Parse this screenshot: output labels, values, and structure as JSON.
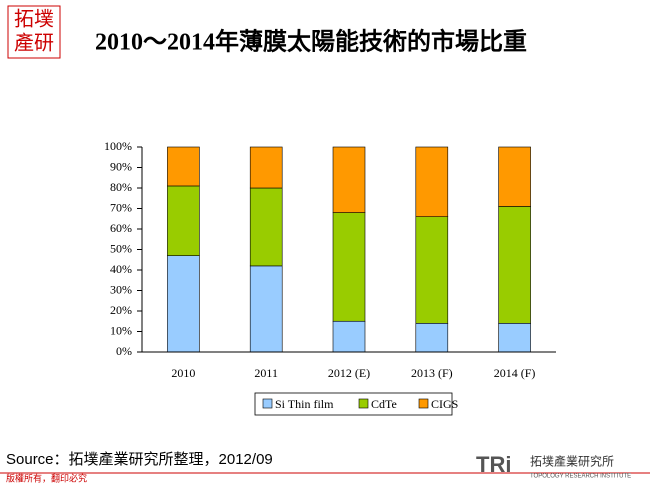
{
  "logo": [
    "拓墣",
    "產研"
  ],
  "chart_data": {
    "type": "stacked_bar",
    "title": "2010～2014年薄膜太陽能技術的市場比重",
    "categories": [
      "2010",
      "2011",
      "2012 (E)",
      "2013 (F)",
      "2014 (F)"
    ],
    "series": [
      {
        "name": "Si Thin film",
        "color": "#99ccff",
        "values": [
          47,
          42,
          15,
          14,
          14
        ]
      },
      {
        "name": "CdTe",
        "color": "#99cc00",
        "values": [
          34,
          38,
          53,
          52,
          57
        ]
      },
      {
        "name": "CIGS",
        "color": "#ff9900",
        "values": [
          19,
          20,
          32,
          34,
          29
        ]
      }
    ],
    "ylim": [
      0,
      100
    ],
    "yticks": [
      {
        "value": 0,
        "label": "0%"
      },
      {
        "value": 10,
        "label": "10%"
      },
      {
        "value": 20,
        "label": "20%"
      },
      {
        "value": 30,
        "label": "30%"
      },
      {
        "value": 40,
        "label": "40%"
      },
      {
        "value": 50,
        "label": "50%"
      },
      {
        "value": 60,
        "label": "60%"
      },
      {
        "value": 70,
        "label": "70%"
      },
      {
        "value": 80,
        "label": "80%"
      },
      {
        "value": 90,
        "label": "90%"
      },
      {
        "value": 100,
        "label": "100%"
      }
    ],
    "legend": "bottom"
  },
  "source": "Source：拓墣產業研究所整理，2012/09",
  "footer": "版權所有，翻印必究",
  "brand": {
    "mark": "TRi",
    "name": "拓墣產業研究所",
    "subtitle": "TOPOLOGY RESEARCH INSTITUTE"
  }
}
